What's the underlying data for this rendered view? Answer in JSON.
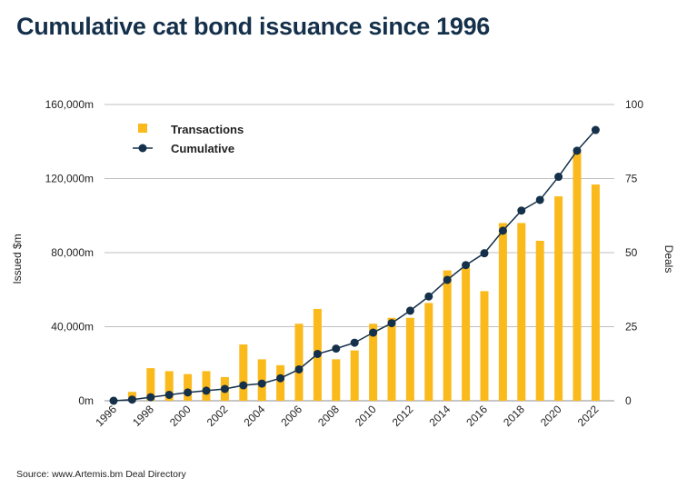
{
  "title": "Cumulative cat bond issuance since 1996",
  "source": "Source: www.Artemis.bm Deal Directory",
  "colors": {
    "bar": "#FBBA1C",
    "line": "#14304a",
    "grid": "#bfbfbf"
  },
  "chart_data": {
    "type": "bar+line",
    "categories": [
      "1996",
      "1997",
      "1998",
      "1999",
      "2000",
      "2001",
      "2002",
      "2003",
      "2004",
      "2005",
      "2006",
      "2007",
      "2008",
      "2009",
      "2010",
      "2011",
      "2012",
      "2013",
      "2014",
      "2015",
      "2016",
      "2017",
      "2018",
      "2019",
      "2020",
      "2021",
      "2022"
    ],
    "x_tick_labels": [
      "1996",
      "1998",
      "2000",
      "2002",
      "2004",
      "2006",
      "2008",
      "2010",
      "2012",
      "2014",
      "2016",
      "2018",
      "2020",
      "2022"
    ],
    "series": [
      {
        "name": "Transactions",
        "type": "bar",
        "axis": "right",
        "values": [
          0,
          3,
          11,
          10,
          9,
          10,
          8,
          19,
          14,
          12,
          26,
          31,
          14,
          17,
          26,
          28,
          28,
          33,
          44,
          45,
          37,
          60,
          60,
          54,
          69,
          84,
          73
        ]
      },
      {
        "name": "Cumulative",
        "type": "line",
        "axis": "right",
        "values": [
          0,
          0.4,
          1.2,
          2.0,
          2.8,
          3.4,
          4.0,
          5.2,
          5.8,
          7.6,
          10.6,
          15.8,
          17.6,
          19.6,
          23.0,
          26.2,
          30.4,
          35.2,
          40.8,
          45.8,
          49.8,
          57.4,
          64.2,
          67.8,
          75.6,
          84.4,
          91.4
        ]
      }
    ],
    "y_left": {
      "label": "Issued $m",
      "ticks": [
        "0m",
        "40,000m",
        "80,000m",
        "120,000m",
        "160,000m"
      ],
      "ylim": [
        0,
        160000
      ]
    },
    "y_right": {
      "label": "Deals",
      "ticks": [
        "0",
        "25",
        "50",
        "75",
        "100"
      ],
      "ylim": [
        0,
        100
      ]
    },
    "grid": true,
    "legend": "top-left"
  }
}
